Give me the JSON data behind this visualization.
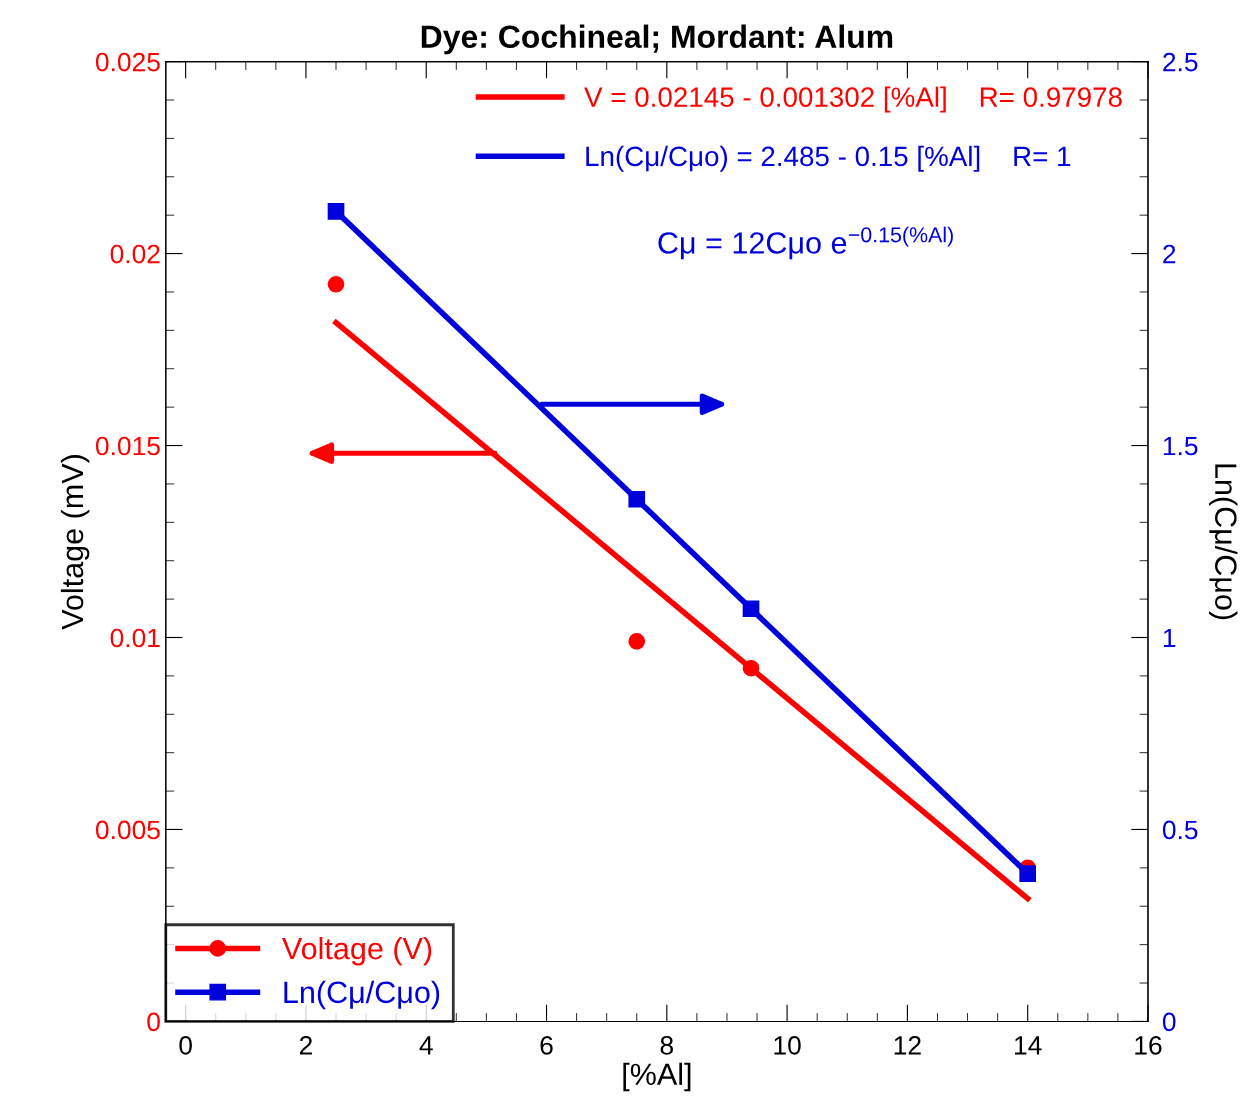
{
  "chart_data": {
    "type": "scatter",
    "title": "Dye: Cochineal; Mordant: Alum",
    "xlabel": "[%Al]",
    "ylabel": "Voltage (mV)",
    "y2label": "Ln(Cμ/Cμo)",
    "xlim": [
      -0.33,
      16
    ],
    "xticks": [
      0,
      2,
      4,
      6,
      8,
      10,
      12,
      14,
      16
    ],
    "ylim": [
      0,
      0.025
    ],
    "yticks": [
      0,
      0.005,
      0.01,
      0.015,
      0.02,
      0.025
    ],
    "y2lim": [
      0,
      2.5
    ],
    "y2ticks": [
      0,
      0.5,
      1,
      1.5,
      2,
      2.5
    ],
    "legend": "bottom left",
    "grid": false,
    "series": [
      {
        "name": "Voltage (V)",
        "marker": "circle",
        "color": "#ff0000",
        "x": [
          2.5,
          7.5,
          9.4,
          14
        ],
        "values": [
          0.0192,
          0.0099,
          0.0092,
          0.004
        ]
      },
      {
        "name": "Ln(Cμ/Cμo)",
        "marker": "square",
        "axis": "y2",
        "color": "#0000dd",
        "x": [
          2.5,
          7.5,
          9.4,
          14
        ],
        "values": [
          2.11,
          1.36,
          1.075,
          0.385
        ]
      },
      {
        "name": "V = 0.02145 - 0.001302 [%Al]    R= 0.97978",
        "type": "line",
        "color": "#ff0000",
        "x": [
          2.5,
          14
        ],
        "values": [
          0.0182,
          0.0032
        ]
      },
      {
        "name": "Ln(Cμ/Cμo) = 2.485 - 0.15 [%Al]    R= 1",
        "type": "line",
        "axis": "y2",
        "color": "#0000dd",
        "x": [
          2.5,
          14
        ],
        "values": [
          2.11,
          0.385
        ]
      }
    ],
    "annotations": [
      "Cμ = 12Cμo e$^{−0.15(%Al)}$"
    ]
  }
}
